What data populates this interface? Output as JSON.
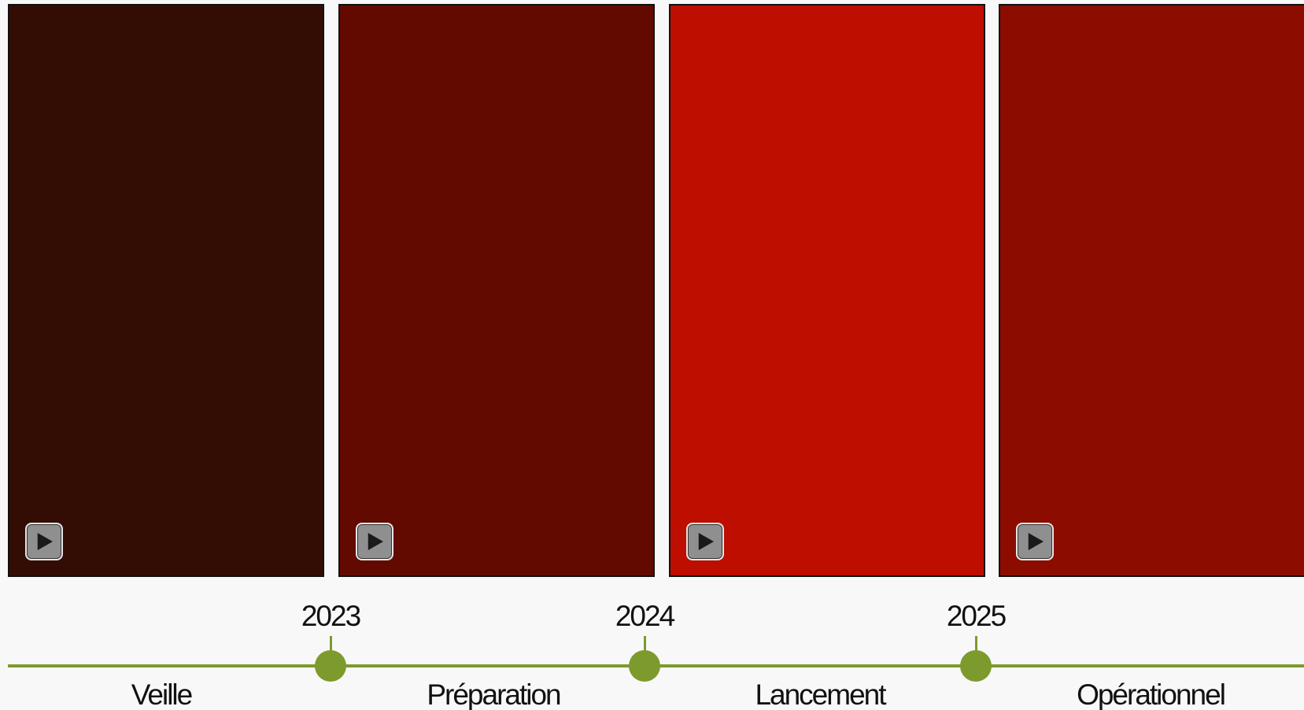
{
  "panels": [
    {
      "color": "#330d04",
      "play_icon": "play-icon"
    },
    {
      "color": "#620a00",
      "play_icon": "play-icon"
    },
    {
      "color": "#bd0e00",
      "play_icon": "play-icon"
    },
    {
      "color": "#8c0c00",
      "play_icon": "play-icon"
    }
  ],
  "timeline": {
    "accent_color": "#7d9a2c",
    "years": [
      "2023",
      "2024",
      "2025"
    ],
    "phases": [
      "Veille",
      "Préparation",
      "Lancement",
      "Opérationnel"
    ]
  }
}
